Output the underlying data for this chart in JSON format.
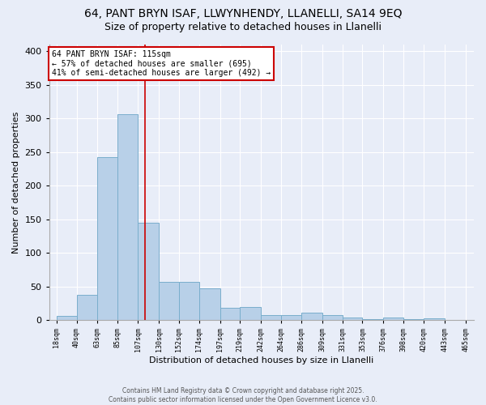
{
  "title_line1": "64, PANT BRYN ISAF, LLWYNHENDY, LLANELLI, SA14 9EQ",
  "title_line2": "Size of property relative to detached houses in Llanelli",
  "xlabel": "Distribution of detached houses by size in Llanelli",
  "ylabel": "Number of detached properties",
  "bar_values": [
    7,
    38,
    243,
    307,
    145,
    57,
    57,
    48,
    18,
    20,
    8,
    8,
    11,
    8,
    4,
    2,
    4,
    2,
    3
  ],
  "bin_edges": [
    18,
    40,
    63,
    85,
    107,
    130,
    152,
    174,
    197,
    219,
    242,
    264,
    286,
    309,
    331,
    353,
    376,
    398,
    420,
    443
  ],
  "bin_width": 22,
  "x_tick_labels": [
    "18sqm",
    "40sqm",
    "63sqm",
    "85sqm",
    "107sqm",
    "130sqm",
    "152sqm",
    "174sqm",
    "197sqm",
    "219sqm",
    "242sqm",
    "264sqm",
    "286sqm",
    "309sqm",
    "331sqm",
    "353sqm",
    "376sqm",
    "398sqm",
    "420sqm",
    "443sqm",
    "465sqm"
  ],
  "bar_color": "#b8d0e8",
  "bar_edge_color": "#7aaecc",
  "red_line_x": 115,
  "annotation_text_line1": "64 PANT BRYN ISAF: 115sqm",
  "annotation_text_line2": "← 57% of detached houses are smaller (695)",
  "annotation_text_line3": "41% of semi-detached houses are larger (492) →",
  "annotation_box_color": "#ffffff",
  "annotation_border_color": "#cc0000",
  "ylim": [
    0,
    410
  ],
  "xlim": [
    10,
    475
  ],
  "background_color": "#e8edf8",
  "plot_bg_color": "#e8edf8",
  "footer_text": "Contains HM Land Registry data © Crown copyright and database right 2025.\nContains public sector information licensed under the Open Government Licence v3.0.",
  "grid_color": "#ffffff",
  "title_fontsize": 10,
  "subtitle_fontsize": 9,
  "yticks": [
    0,
    50,
    100,
    150,
    200,
    250,
    300,
    350,
    400
  ]
}
